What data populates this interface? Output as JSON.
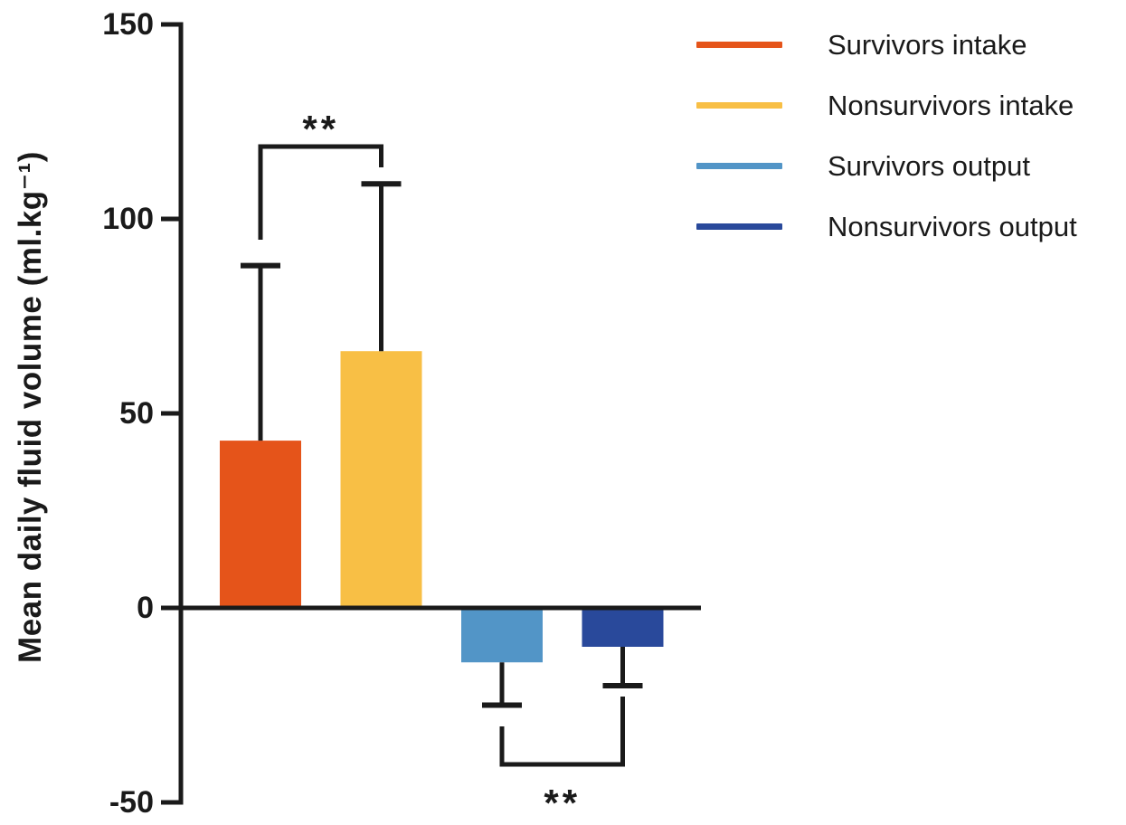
{
  "figure": {
    "background": "#ffffff",
    "ink_color": "#1a1a1a"
  },
  "chart_data": {
    "type": "bar",
    "title": "",
    "xlabel": "",
    "ylabel": "Mean daily fluid volume (ml.kg⁻¹)",
    "ylim": [
      -50,
      150
    ],
    "yticks": [
      150,
      100,
      50,
      0,
      -50
    ],
    "grid": false,
    "legend_position": "top-right",
    "series": [
      {
        "name": "Survivors intake",
        "value": 43,
        "error": 45,
        "color": "#E5541A"
      },
      {
        "name": "Nonsurvivors intake",
        "value": 66,
        "error": 43,
        "color": "#F8BF45"
      },
      {
        "name": "Survivors output",
        "value": -14,
        "error": 11,
        "color": "#5295C7"
      },
      {
        "name": "Nonsurvivors output",
        "value": -10,
        "error": 10,
        "color": "#29499B"
      }
    ],
    "significance": [
      {
        "pair": [
          0,
          1
        ],
        "label": "**"
      },
      {
        "pair": [
          2,
          3
        ],
        "label": "**"
      }
    ]
  }
}
